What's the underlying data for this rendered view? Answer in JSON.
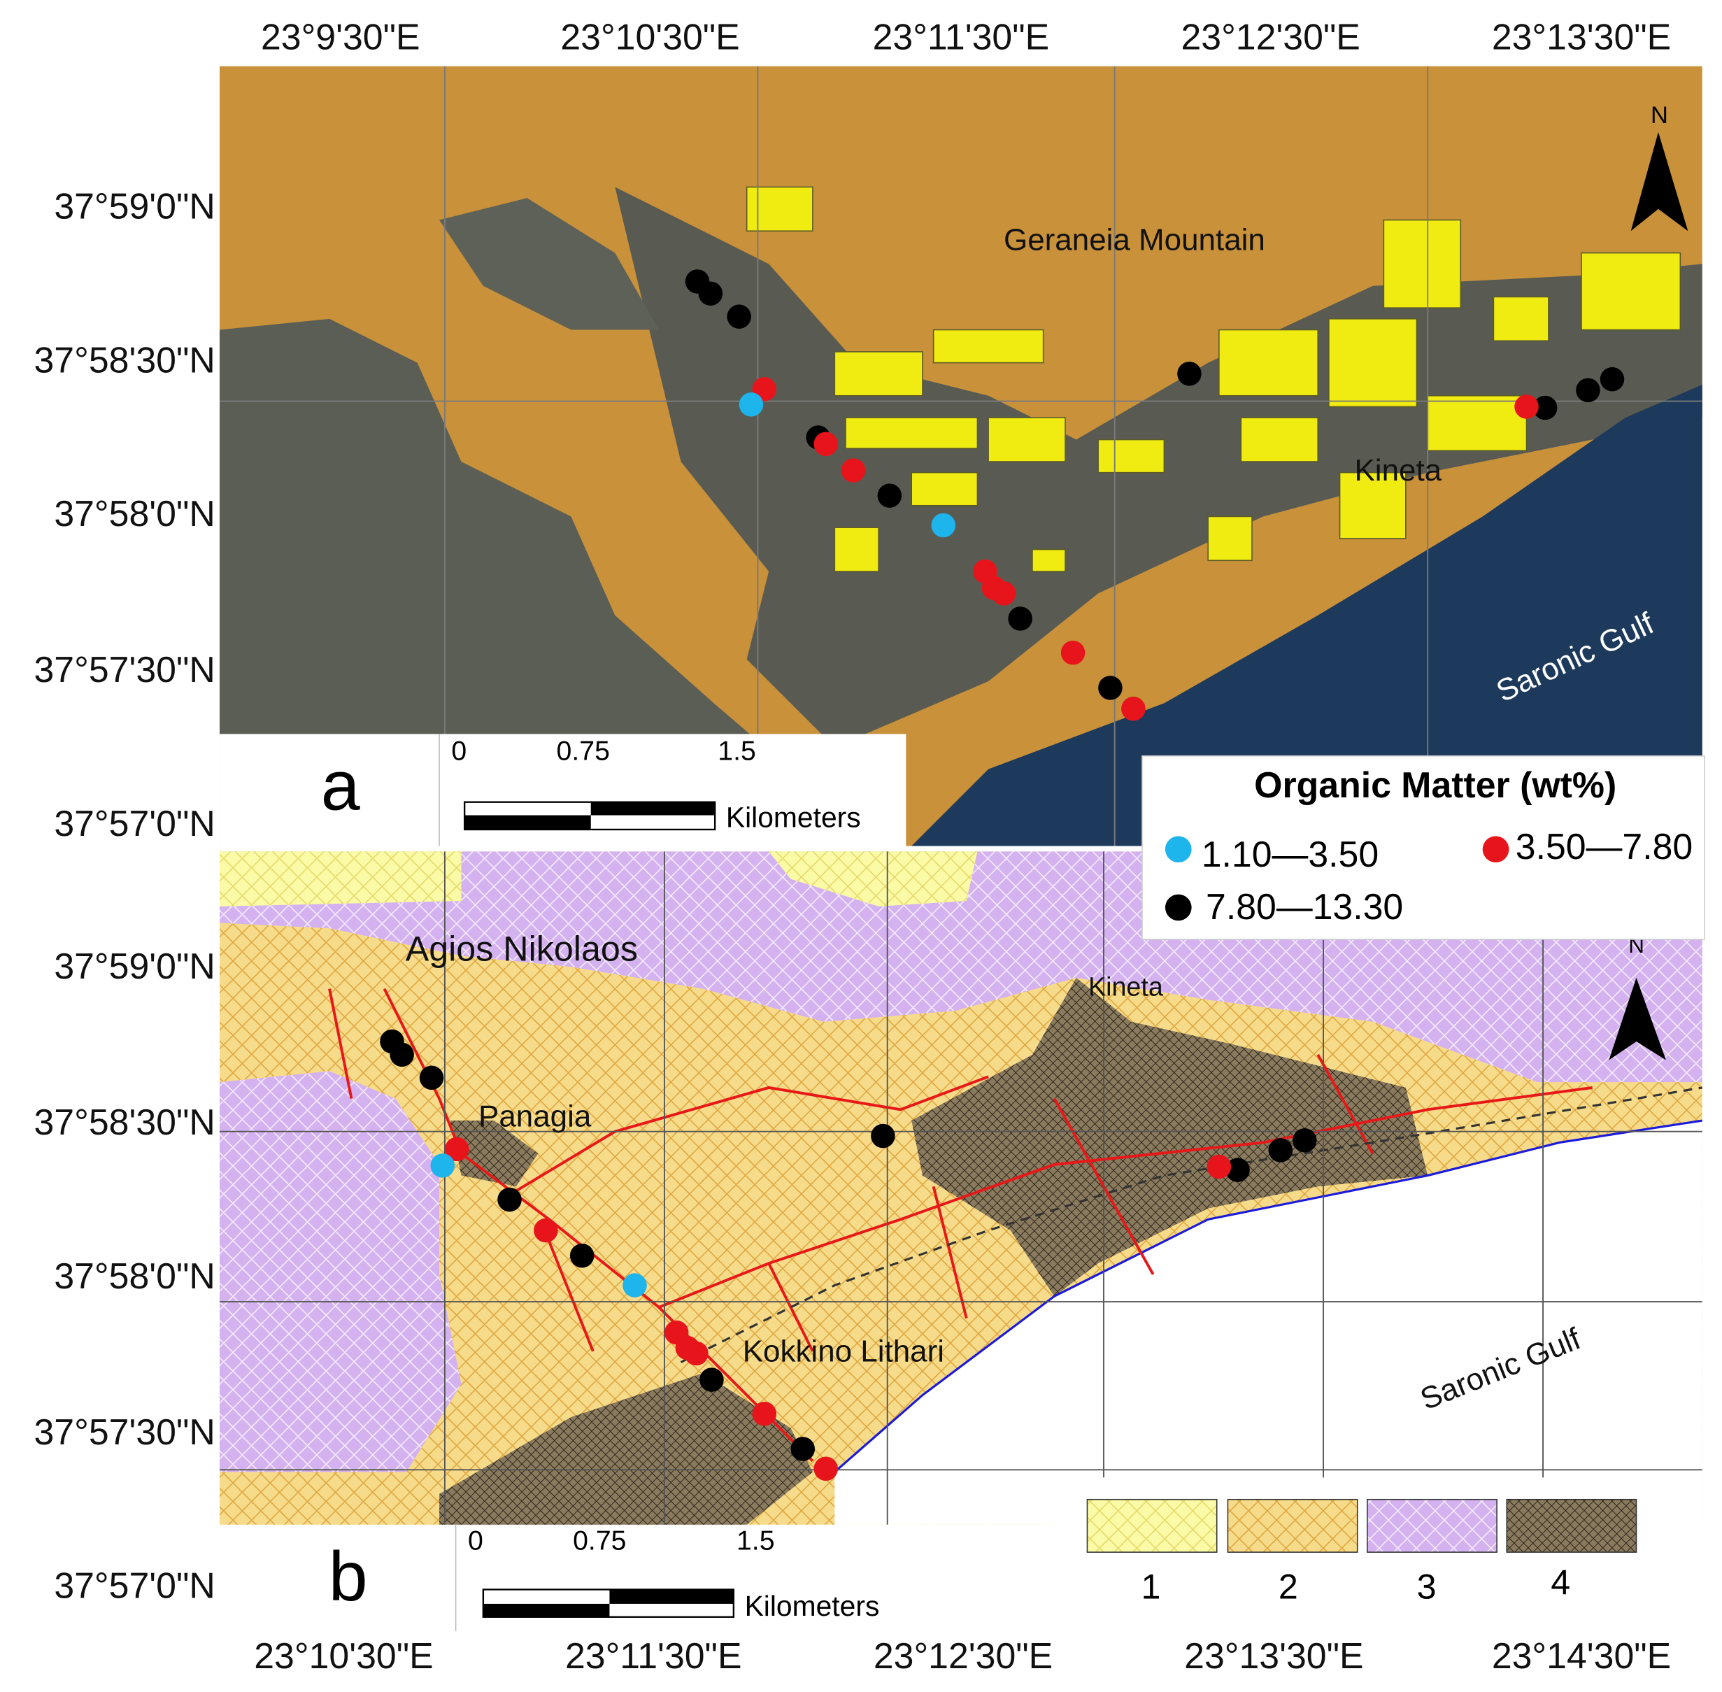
{
  "panel_a": {
    "label": "a",
    "top_axis": [
      "23°9'30\"E",
      "23°10'30\"E",
      "23°11'30\"E",
      "23°12'30\"E",
      "23°13'30\"E"
    ],
    "left_axis": [
      "37°59'0\"N",
      "37°58'30\"N",
      "37°58'0\"N",
      "37°57'30\"N",
      "37°57'0\"N"
    ],
    "places": [
      "Geraneia Mountain",
      "Kineta",
      "Saronic Gulf"
    ],
    "north": "N",
    "scale": {
      "ticks": [
        "0",
        "0.75",
        "1.5"
      ],
      "unit": "Kilometers"
    }
  },
  "legend": {
    "title": "Organic Matter (wt%)",
    "classes": [
      "1.10—3.50",
      "3.50—7.80",
      "7.80—13.30"
    ]
  },
  "panel_b": {
    "label": "b",
    "bottom_axis": [
      "23°10'30\"E",
      "23°11'30\"E",
      "23°12'30\"E",
      "23°13'30\"E",
      "23°14'30\"E"
    ],
    "left_axis": [
      "37°59'0\"N",
      "37°58'30\"N",
      "37°58'0\"N",
      "37°57'30\"N",
      "37°57'0\"N"
    ],
    "places": [
      "Agios Nikolaos",
      "Panagia",
      "Kineta",
      "Kokkino Lithari",
      "Saronic Gulf"
    ],
    "north": "N",
    "scale": {
      "ticks": [
        "0",
        "0.75",
        "1.5"
      ],
      "unit": "Kilometers"
    },
    "units_legend": [
      "1",
      "2",
      "3",
      "4"
    ]
  }
}
